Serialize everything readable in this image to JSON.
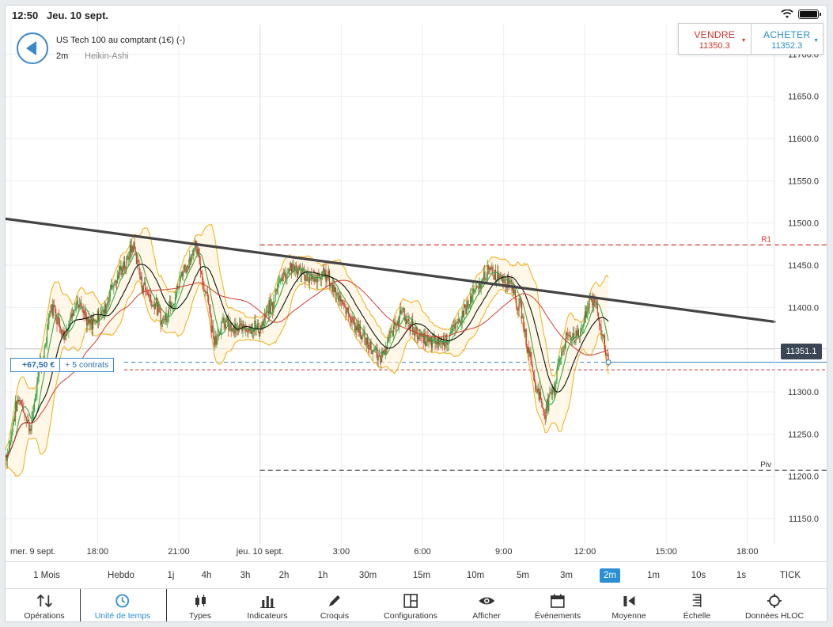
{
  "status_bar": {
    "time": "12:50",
    "date": "Jeu. 10 sept."
  },
  "instrument": {
    "name": "US Tech 100 au comptant (1€) (-)",
    "timeframe": "2m",
    "chart_type": "Heikin-Ashi"
  },
  "trade": {
    "sell_label": "VENDRE",
    "sell_price": "11350.3",
    "buy_label": "ACHETER",
    "buy_price": "11352.3",
    "sell_color": "#d0352b",
    "buy_color": "#2a8fc4"
  },
  "position": {
    "pl": "+67,50 €",
    "contracts": "+ 5 contrats"
  },
  "current_price": "11351.1",
  "levels": [
    {
      "label": "R1",
      "value": 11474,
      "color": "#d0352b"
    },
    {
      "label": "Piv",
      "value": 11207,
      "color": "#333333"
    }
  ],
  "chart_data": {
    "type": "candlestick",
    "y_ticks": [
      "11150.0",
      "11200.0",
      "11250.0",
      "11300.0",
      "11350.0",
      "11400.0",
      "11450.0",
      "11500.0",
      "11550.0",
      "11600.0",
      "11650.0",
      "11700.0"
    ],
    "ylim": [
      11120,
      11735
    ],
    "x_tick_labels": [
      "mer. 9 sept.",
      "18:00",
      "21:00",
      "jeu. 10 sept.",
      "3:00",
      "6:00",
      "9:00",
      "12:00",
      "15:00",
      "18:00"
    ],
    "x_ticks_hours": [
      14.8,
      18,
      21,
      24,
      27,
      30,
      33,
      36,
      39,
      42
    ],
    "xlim_hours": [
      14.6,
      43.0
    ],
    "trendline": {
      "from": [
        14.6,
        11505
      ],
      "to": [
        43.0,
        11383
      ]
    },
    "series": [
      {
        "time": 14.6,
        "close": 11225
      },
      {
        "time": 15.1,
        "close": 11290
      },
      {
        "time": 15.5,
        "close": 11260
      },
      {
        "time": 15.9,
        "close": 11330
      },
      {
        "time": 16.3,
        "close": 11400
      },
      {
        "time": 16.8,
        "close": 11370
      },
      {
        "time": 17.2,
        "close": 11405
      },
      {
        "time": 17.7,
        "close": 11380
      },
      {
        "time": 18.2,
        "close": 11395
      },
      {
        "time": 18.6,
        "close": 11430
      },
      {
        "time": 19.0,
        "close": 11450
      },
      {
        "time": 19.3,
        "close": 11472
      },
      {
        "time": 19.7,
        "close": 11425
      },
      {
        "time": 20.1,
        "close": 11405
      },
      {
        "time": 20.4,
        "close": 11385
      },
      {
        "time": 20.8,
        "close": 11410
      },
      {
        "time": 21.2,
        "close": 11445
      },
      {
        "time": 21.6,
        "close": 11470
      },
      {
        "time": 22.0,
        "close": 11420
      },
      {
        "time": 22.3,
        "close": 11365
      },
      {
        "time": 22.7,
        "close": 11382
      },
      {
        "time": 23.1,
        "close": 11372
      },
      {
        "time": 23.5,
        "close": 11378
      },
      {
        "time": 24.0,
        "close": 11375
      },
      {
        "time": 24.4,
        "close": 11400
      },
      {
        "time": 24.8,
        "close": 11438
      },
      {
        "time": 25.2,
        "close": 11448
      },
      {
        "time": 25.6,
        "close": 11440
      },
      {
        "time": 26.0,
        "close": 11432
      },
      {
        "time": 26.4,
        "close": 11440
      },
      {
        "time": 26.8,
        "close": 11420
      },
      {
        "time": 27.2,
        "close": 11395
      },
      {
        "time": 27.6,
        "close": 11375
      },
      {
        "time": 28.0,
        "close": 11355
      },
      {
        "time": 28.4,
        "close": 11340
      },
      {
        "time": 28.8,
        "close": 11365
      },
      {
        "time": 29.2,
        "close": 11392
      },
      {
        "time": 29.6,
        "close": 11378
      },
      {
        "time": 30.0,
        "close": 11362
      },
      {
        "time": 30.4,
        "close": 11358
      },
      {
        "time": 30.8,
        "close": 11362
      },
      {
        "time": 31.2,
        "close": 11375
      },
      {
        "time": 31.6,
        "close": 11400
      },
      {
        "time": 32.0,
        "close": 11420
      },
      {
        "time": 32.4,
        "close": 11442
      },
      {
        "time": 32.8,
        "close": 11438
      },
      {
        "time": 33.2,
        "close": 11432
      },
      {
        "time": 33.6,
        "close": 11400
      },
      {
        "time": 33.9,
        "close": 11352
      },
      {
        "time": 34.2,
        "close": 11305
      },
      {
        "time": 34.5,
        "close": 11278
      },
      {
        "time": 34.8,
        "close": 11300
      },
      {
        "time": 35.1,
        "close": 11345
      },
      {
        "time": 35.4,
        "close": 11368
      },
      {
        "time": 35.7,
        "close": 11365
      },
      {
        "time": 36.0,
        "close": 11385
      },
      {
        "time": 36.2,
        "close": 11412
      },
      {
        "time": 36.4,
        "close": 11402
      },
      {
        "time": 36.6,
        "close": 11375
      },
      {
        "time": 36.8,
        "close": 11345
      },
      {
        "time": 36.9,
        "close": 11332
      }
    ]
  },
  "timeframes": [
    "1 Mois",
    "Hebdo",
    "1j",
    "4h",
    "3h",
    "2h",
    "1h",
    "30m",
    "15m",
    "10m",
    "5m",
    "3m",
    "2m",
    "1m",
    "10s",
    "1s",
    "TICK"
  ],
  "active_timeframe": "2m",
  "bottom_tabs": [
    {
      "label": "Opérations",
      "icon": "sort-arrows-icon"
    },
    {
      "label": "Unité de temps",
      "icon": "clock-icon"
    },
    {
      "label": "Types",
      "icon": "candlestick-icon"
    },
    {
      "label": "Indicateurs",
      "icon": "bar-chart-icon"
    },
    {
      "label": "Croquis",
      "icon": "pencil-icon"
    },
    {
      "label": "Configurations",
      "icon": "layout-icon"
    },
    {
      "label": "Afficher",
      "icon": "eye-icon"
    },
    {
      "label": "Événements",
      "icon": "calendar-icon"
    },
    {
      "label": "Moyenne",
      "icon": "average-icon"
    },
    {
      "label": "Échelle",
      "icon": "scale-icon"
    },
    {
      "label": "Données HLOC",
      "icon": "crosshair-icon"
    }
  ],
  "active_tab": "Unité de temps"
}
